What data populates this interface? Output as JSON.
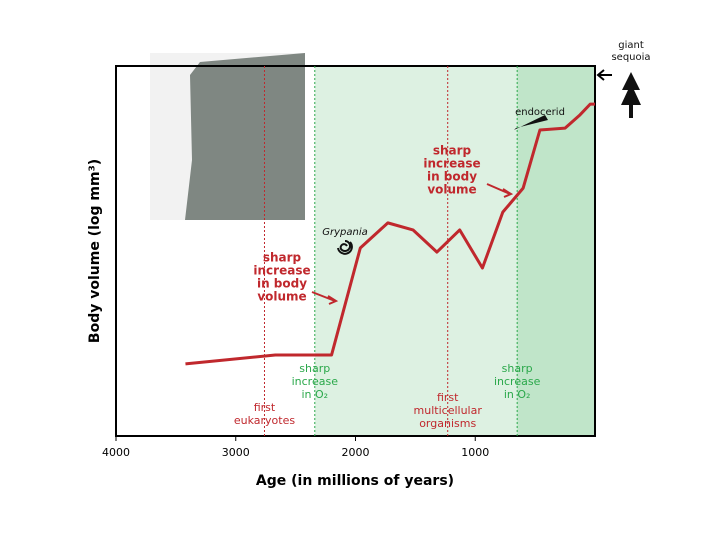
{
  "chart_data": {
    "type": "line",
    "xlabel": "Age (in millions of years)",
    "ylabel": "Body volume (log mm³)",
    "xlim": [
      4000,
      0
    ],
    "xticks": [
      4000,
      3000,
      2000,
      1000
    ],
    "ylim": [
      0,
      10
    ],
    "x": [
      3420,
      2670,
      2200,
      1960,
      1730,
      1520,
      1320,
      1130,
      940,
      770,
      600,
      460,
      250,
      125,
      40,
      0
    ],
    "series": [
      {
        "color": "#c0282d",
        "values": [
          1.95,
          2.19,
          2.19,
          5.08,
          5.76,
          5.57,
          4.97,
          5.57,
          4.54,
          6.05,
          6.7,
          8.27,
          8.32,
          8.68,
          8.97,
          8.97
        ]
      }
    ],
    "events": [
      {
        "x": 2760,
        "color": "#c0282d",
        "lines": [
          "first",
          "eukaryotes"
        ]
      },
      {
        "x": 2340,
        "color": "#2aa84a",
        "lines": [
          "sharp",
          "increase",
          "in O₂"
        ]
      },
      {
        "x": 1230,
        "color": "#c0282d",
        "lines": [
          "first",
          "multicellular",
          "organisms"
        ]
      },
      {
        "x": 650,
        "color": "#2aa84a",
        "lines": [
          "sharp",
          "increase",
          "in O₂"
        ]
      }
    ],
    "annotations": [
      {
        "lines": [
          "sharp",
          "increase",
          "in body",
          "volume"
        ]
      },
      {
        "lines": [
          "sharp",
          "increase",
          "in body",
          "volume"
        ]
      },
      {
        "lines": [
          "Grypania"
        ]
      },
      {
        "lines": [
          "endocerid"
        ]
      },
      {
        "lines": [
          "giant",
          "sequoia"
        ]
      }
    ]
  }
}
